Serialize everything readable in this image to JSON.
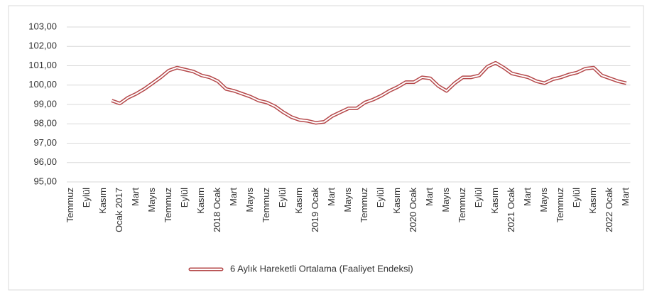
{
  "chart_data": {
    "type": "line",
    "categories": [
      "Temmuz",
      null,
      "Eylül",
      null,
      "Kasım",
      null,
      "Ocak 2017",
      null,
      "Mart",
      null,
      "Mayıs",
      null,
      "Temmuz",
      null,
      "Eylül",
      null,
      "Kasım",
      null,
      "2018 Ocak",
      null,
      "Mart",
      null,
      "Mayıs",
      null,
      "Temmuz",
      null,
      "Eylül",
      null,
      "Kasım",
      null,
      "2019 Ocak",
      null,
      "Mart",
      null,
      "Mayıs",
      null,
      "Temmuz",
      null,
      "Eylül",
      null,
      "Kasım",
      null,
      "2020 Ocak",
      null,
      "Mart",
      null,
      "Mayıs",
      null,
      "Temmuz",
      null,
      "Eylül",
      null,
      "Kasım",
      null,
      "2021 Ocak",
      null,
      "Mart",
      null,
      "Mayıs",
      null,
      "Temmuz",
      null,
      "Eylül",
      null,
      "Kasım",
      null,
      "2022 Ocak",
      null,
      "Mart"
    ],
    "series": [
      {
        "name": "6 Aylık Hareketli Ortalama (Faaliyet Endeksi)",
        "color": "#b5484a",
        "values": [
          null,
          null,
          null,
          null,
          null,
          99.2,
          99.05,
          99.35,
          99.55,
          99.8,
          100.1,
          100.4,
          100.75,
          100.9,
          100.8,
          100.7,
          100.5,
          100.4,
          100.2,
          99.8,
          99.7,
          99.55,
          99.4,
          99.2,
          99.1,
          98.9,
          98.6,
          98.35,
          98.2,
          98.15,
          98.05,
          98.1,
          98.4,
          98.6,
          98.8,
          98.8,
          99.1,
          99.25,
          99.45,
          99.7,
          99.9,
          100.15,
          100.15,
          100.4,
          100.35,
          99.95,
          99.7,
          100.1,
          100.4,
          100.4,
          100.5,
          100.95,
          101.15,
          100.9,
          100.6,
          100.5,
          100.4,
          100.2,
          100.1,
          100.3,
          100.4,
          100.55,
          100.65,
          100.85,
          100.9,
          100.5,
          100.35,
          100.2,
          100.1
        ]
      }
    ],
    "ylim": [
      95,
      103
    ],
    "yticks": [
      {
        "value": 95,
        "label": "95,00"
      },
      {
        "value": 96,
        "label": "96,00"
      },
      {
        "value": 97,
        "label": "97,00"
      },
      {
        "value": 98,
        "label": "98,00"
      },
      {
        "value": 99,
        "label": "99,00"
      },
      {
        "value": 100,
        "label": "100,00"
      },
      {
        "value": 101,
        "label": "101,00"
      },
      {
        "value": 102,
        "label": "102,00"
      },
      {
        "value": 103,
        "label": "103,00"
      }
    ],
    "grid": true,
    "legend": "bottom"
  }
}
